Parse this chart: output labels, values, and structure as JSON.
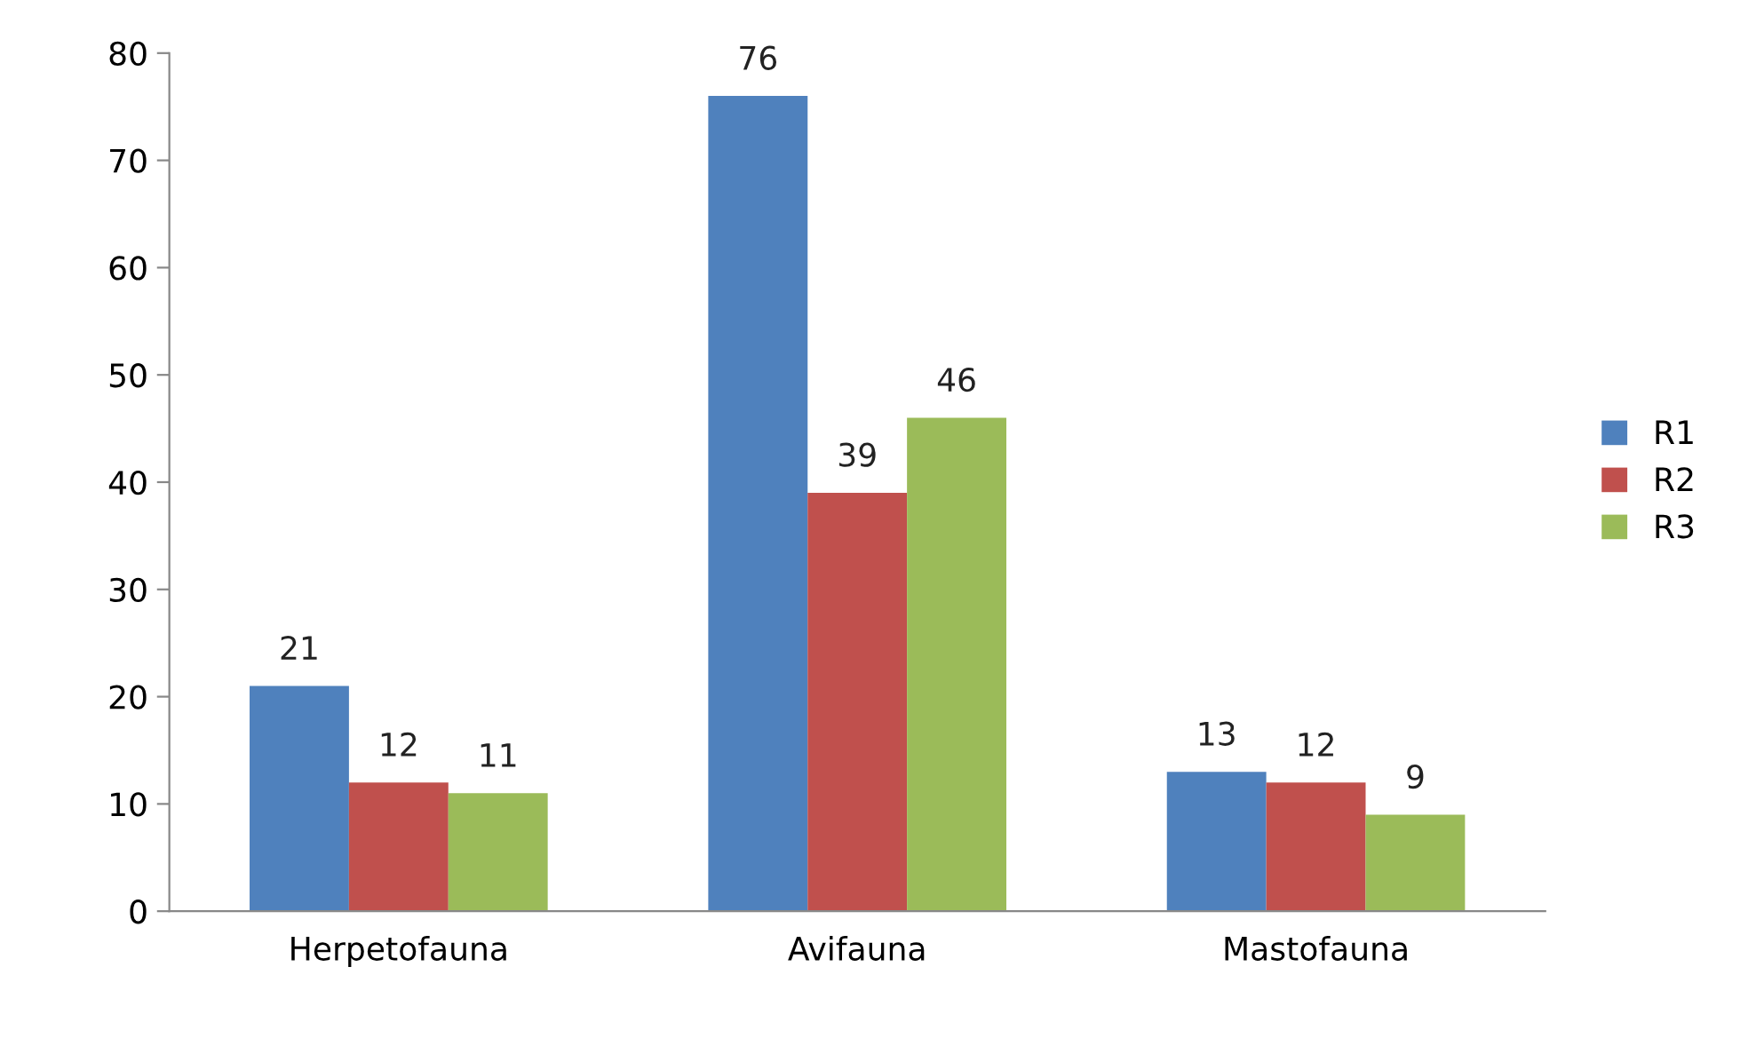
{
  "chart_data": {
    "type": "bar",
    "categories": [
      "Herpetofauna",
      "Avifauna",
      "Mastofauna"
    ],
    "series": [
      {
        "name": "R1",
        "color": "#4f81bd",
        "values": [
          21,
          76,
          13
        ]
      },
      {
        "name": "R2",
        "color": "#c0504d",
        "values": [
          12,
          39,
          12
        ]
      },
      {
        "name": "R3",
        "color": "#9bbb59",
        "values": [
          11,
          46,
          9
        ]
      }
    ],
    "ylim": [
      0,
      80
    ],
    "yticks": [
      0,
      10,
      20,
      30,
      40,
      50,
      60,
      70,
      80
    ],
    "grid": false,
    "legend": "right",
    "data_labels": true
  }
}
